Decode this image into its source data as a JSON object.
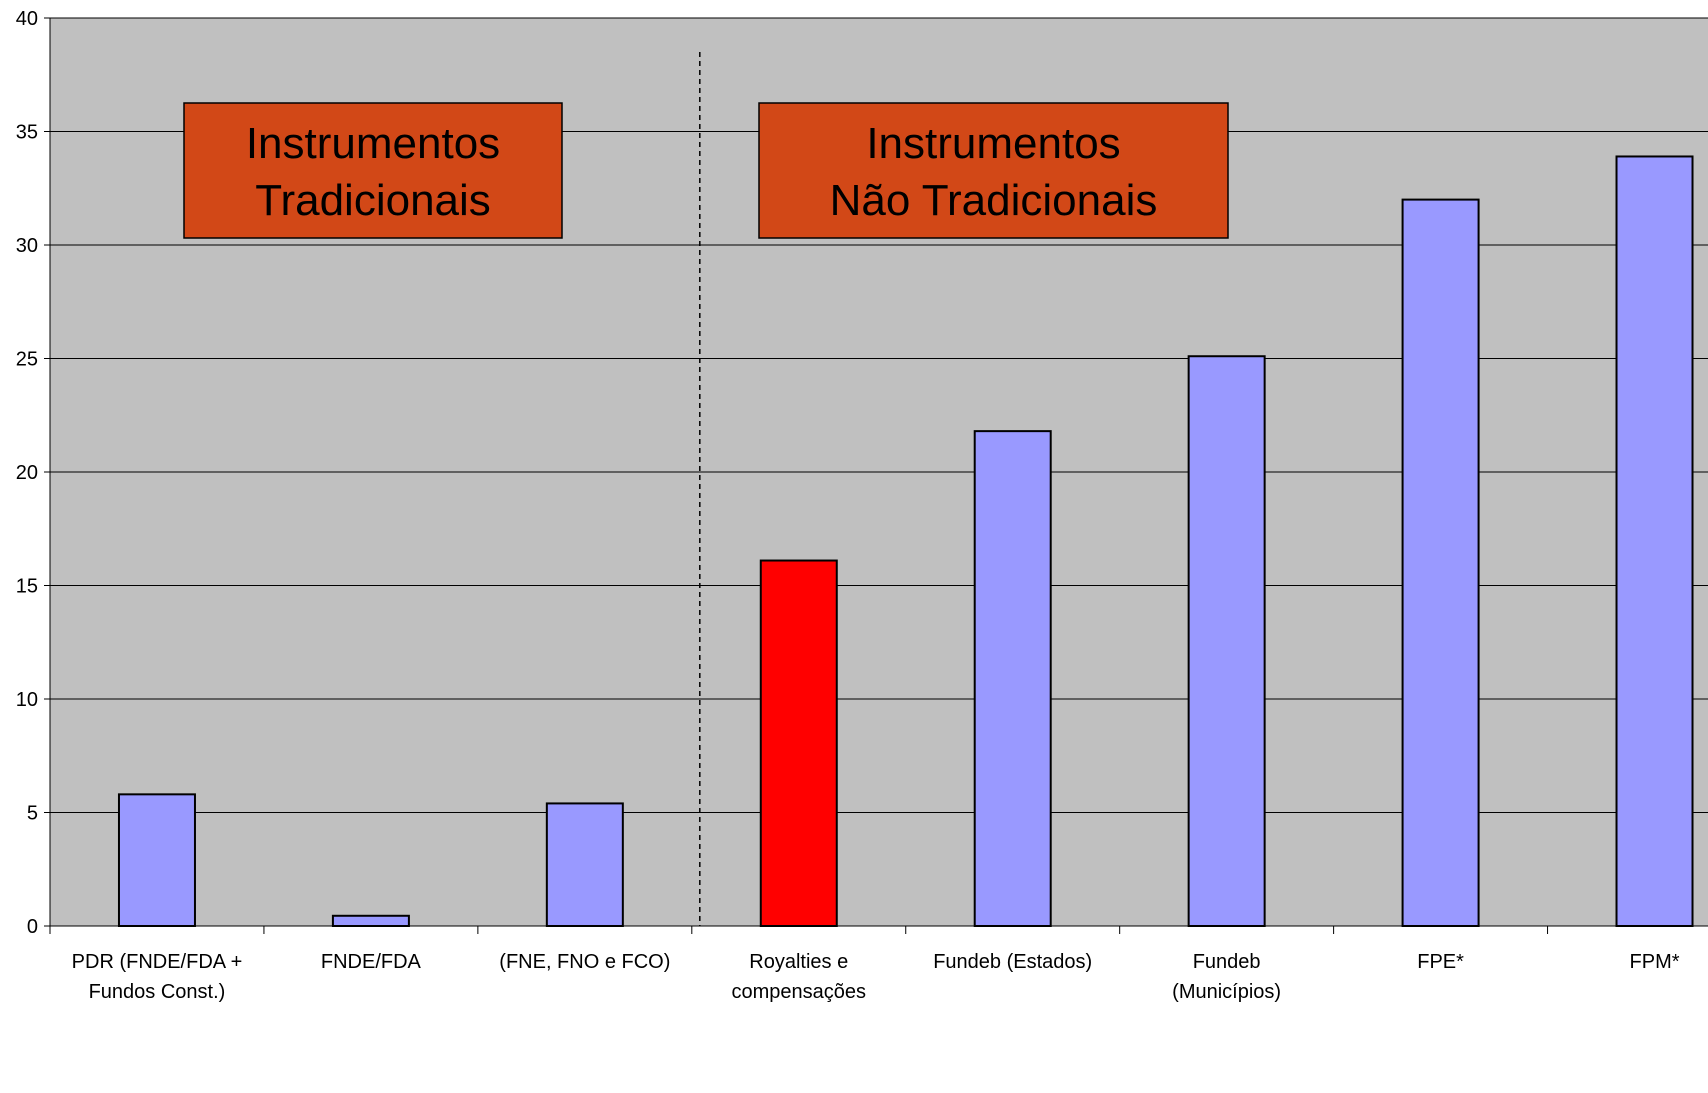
{
  "chart_data": {
    "type": "bar",
    "title": "",
    "xlabel": "",
    "ylabel": "",
    "ylim": [
      0,
      40
    ],
    "yticks": [
      0,
      5,
      10,
      15,
      20,
      25,
      30,
      35,
      40
    ],
    "grid": true,
    "categories": [
      [
        "PDR (FNDE/FDA +",
        "Fundos Const.)"
      ],
      [
        "FNDE/FDA"
      ],
      [
        "(FNE, FNO e FCO)"
      ],
      [
        "Royalties e",
        "compensações"
      ],
      [
        "Fundeb (Estados)"
      ],
      [
        "Fundeb",
        "(Municípios)"
      ],
      [
        "FPE*"
      ],
      [
        "FPM*"
      ]
    ],
    "values": [
      5.8,
      0.45,
      5.4,
      16.1,
      21.8,
      25.1,
      32.0,
      33.9
    ],
    "highlight_index": 3,
    "annotations": [
      {
        "lines": [
          "Instrumentos",
          "Tradicionais"
        ]
      },
      {
        "lines": [
          "Instrumentos",
          "Não Tradicionais"
        ]
      }
    ],
    "colors": {
      "plot_background": "#c0c0c0",
      "bar": "#9999ff",
      "bar_highlight": "#ff0000",
      "annotation_box": "#d24817",
      "gridline": "#000000"
    }
  }
}
